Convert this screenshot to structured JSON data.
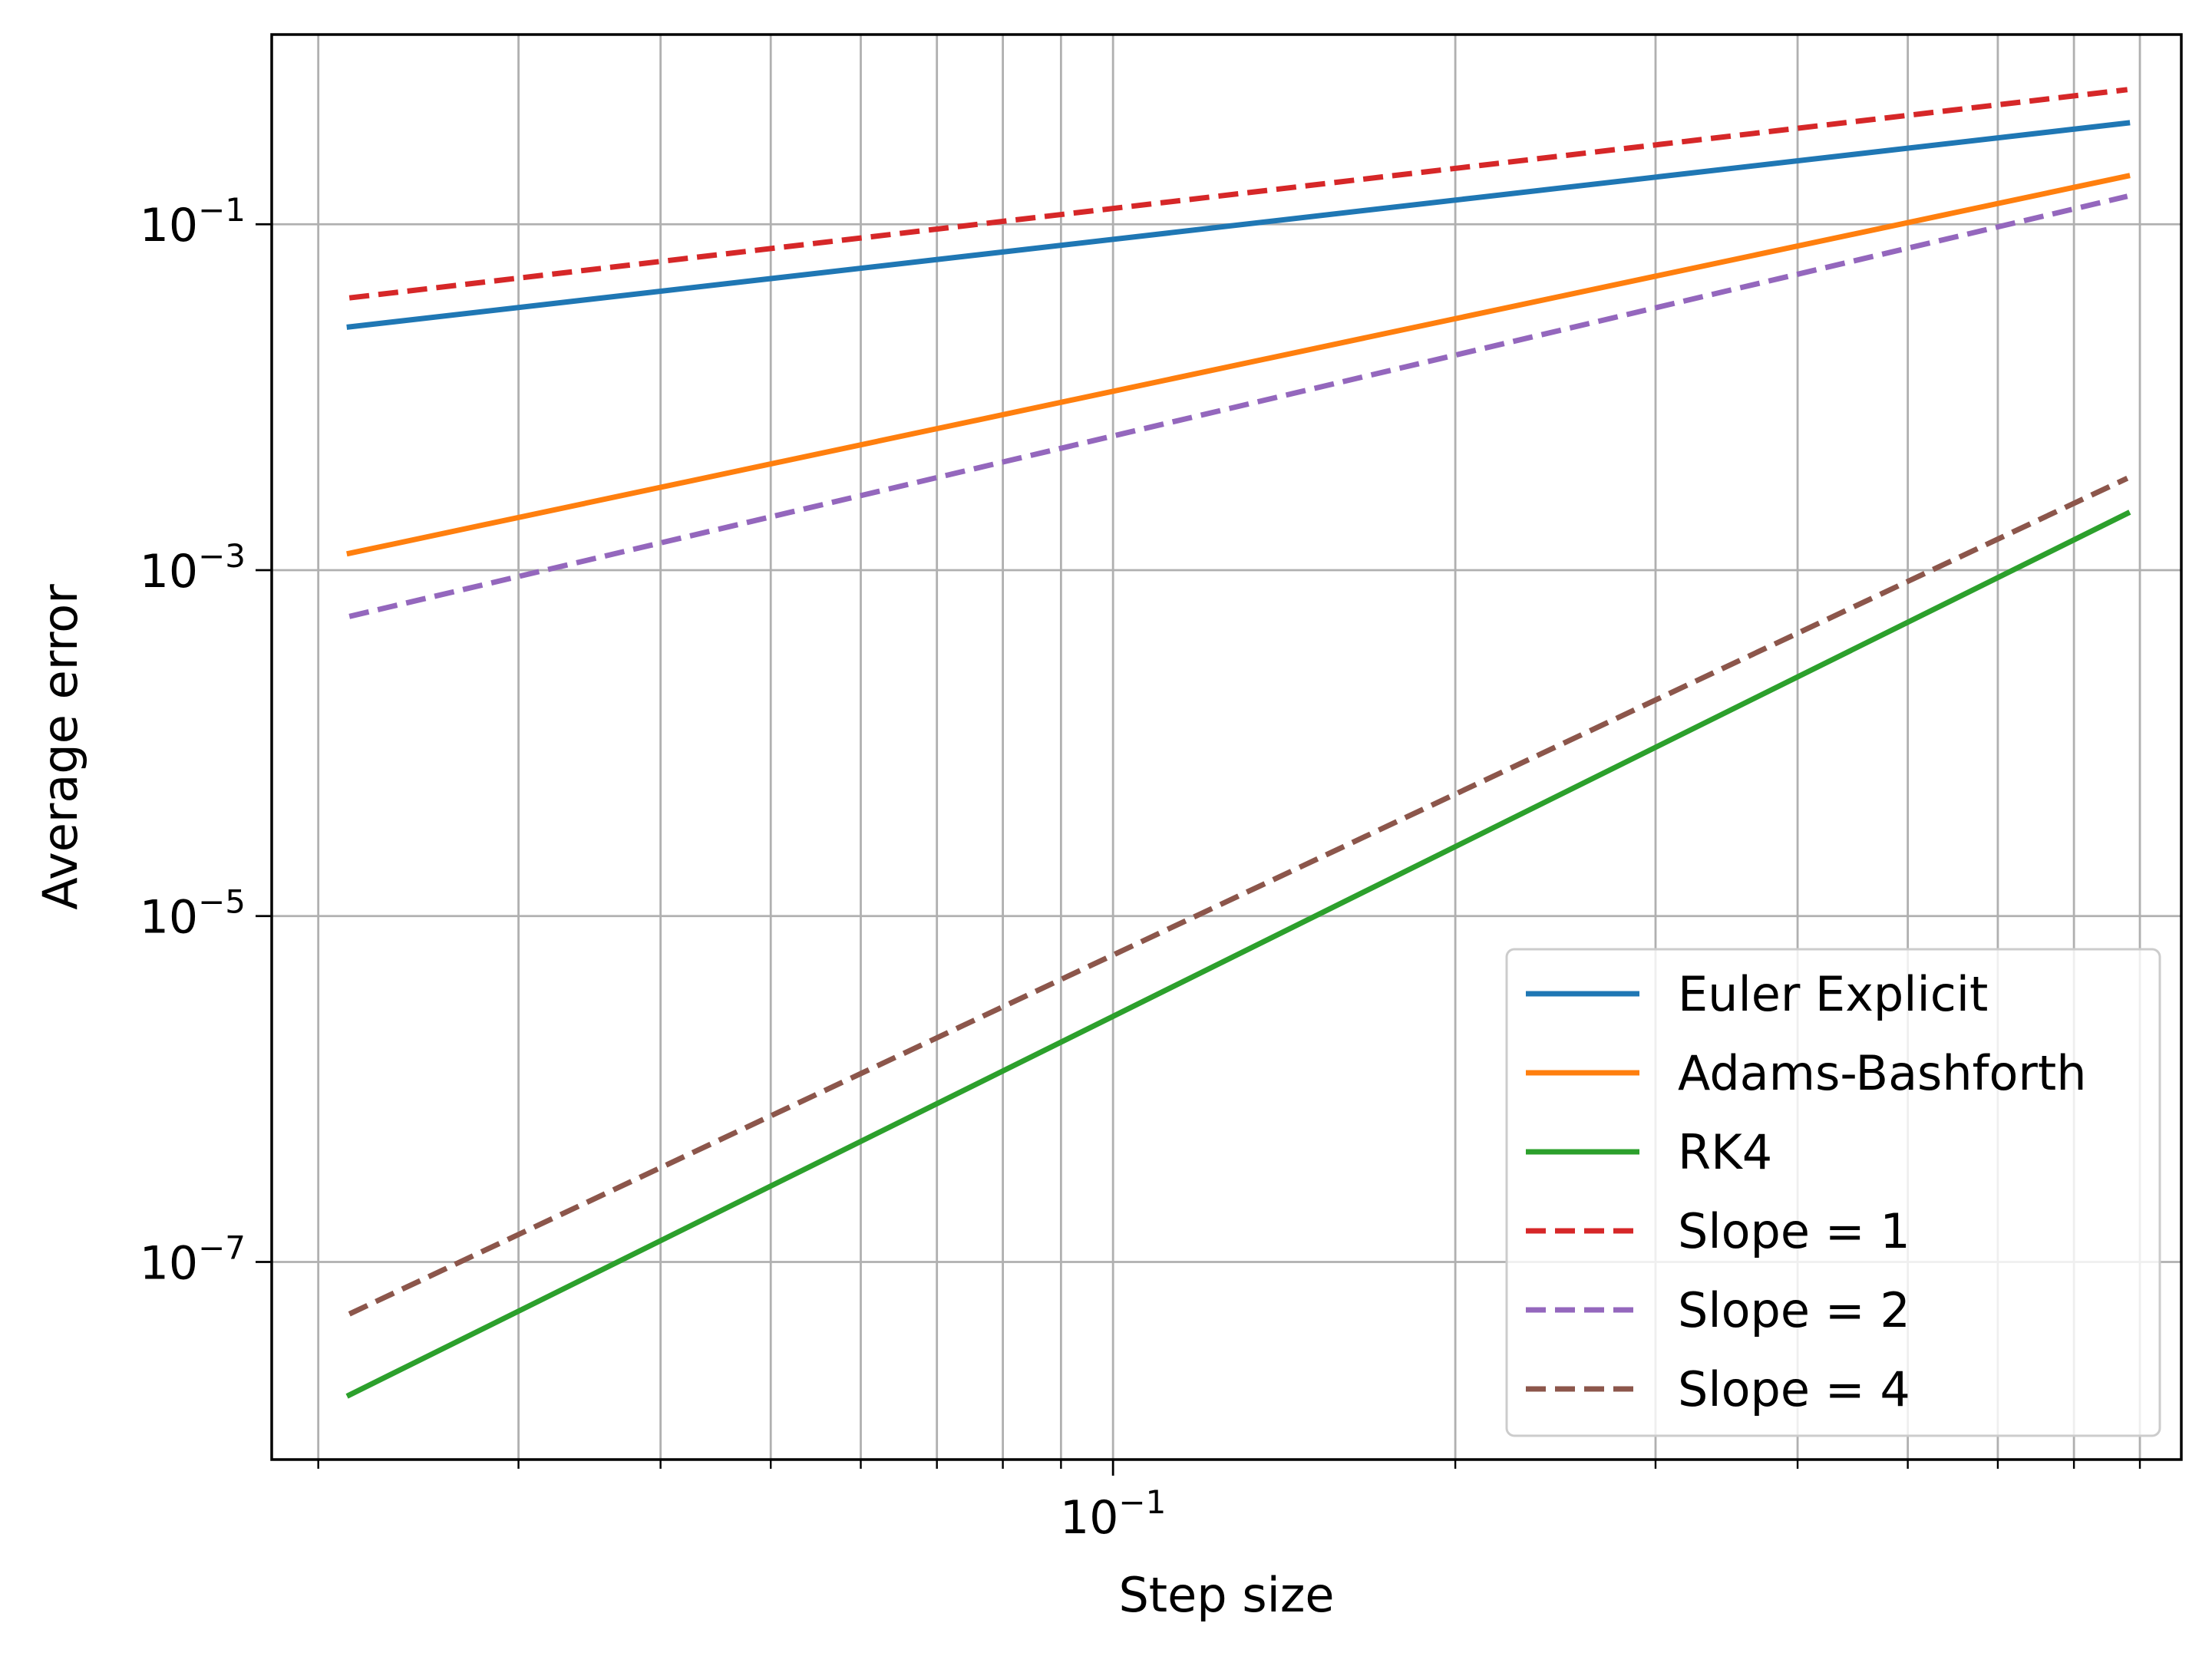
{
  "chart_data": {
    "type": "line",
    "xlabel": "Step size",
    "ylabel": "Average error",
    "xscale": "log",
    "yscale": "log",
    "xlim": [
      0.0182,
      0.87
    ],
    "ylim": [
      7.2e-09,
      1.25
    ],
    "grid": true,
    "legend_position": "lower-right",
    "x_major_ticks": [
      {
        "value": 0.1,
        "base": "10",
        "exp": "−1"
      }
    ],
    "x_minor_ticks": [
      0.02,
      0.03,
      0.04,
      0.05,
      0.06,
      0.07,
      0.08,
      0.09,
      0.2,
      0.3,
      0.4,
      0.5,
      0.6,
      0.7,
      0.8
    ],
    "y_major_ticks": [
      {
        "value": 0.1,
        "base": "10",
        "exp": "−1"
      },
      {
        "value": 0.001,
        "base": "10",
        "exp": "−3"
      },
      {
        "value": 1e-05,
        "base": "10",
        "exp": "−5"
      },
      {
        "value": 1e-07,
        "base": "10",
        "exp": "−7"
      }
    ],
    "series": [
      {
        "name": "Euler Explicit",
        "color": "#1f77b4",
        "dash": "solid",
        "x": [
          0.0213,
          0.78
        ],
        "y": [
          0.0255,
          0.385
        ]
      },
      {
        "name": "Adams-Bashforth",
        "color": "#ff7f0e",
        "dash": "solid",
        "x": [
          0.0213,
          0.78
        ],
        "y": [
          0.00125,
          0.19
        ]
      },
      {
        "name": "RK4",
        "color": "#2ca02c",
        "dash": "solid",
        "x": [
          0.0213,
          0.78
        ],
        "y": [
          1.7e-08,
          0.00213
        ]
      },
      {
        "name": "Slope = 1",
        "color": "#d62728",
        "dash": "dashed",
        "x": [
          0.0213,
          0.78
        ],
        "y": [
          0.0375,
          0.6
        ]
      },
      {
        "name": "Slope = 2",
        "color": "#9467bd",
        "dash": "dashed",
        "x": [
          0.0213,
          0.78
        ],
        "y": [
          0.00054,
          0.145
        ]
      },
      {
        "name": "Slope = 4",
        "color": "#8c564b",
        "dash": "dashed",
        "x": [
          0.0213,
          0.78
        ],
        "y": [
          5e-08,
          0.0034
        ]
      }
    ]
  }
}
